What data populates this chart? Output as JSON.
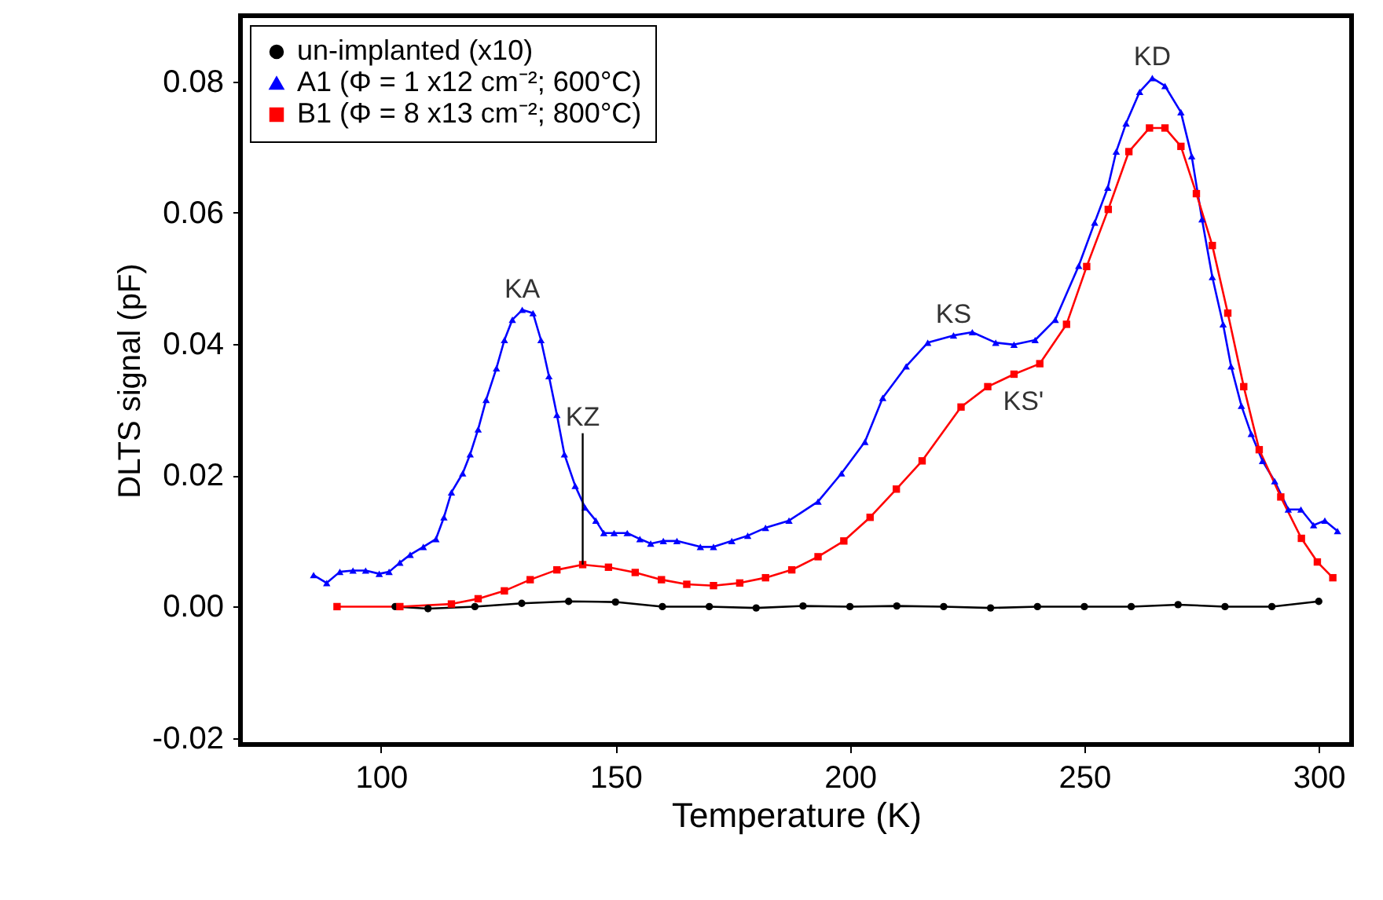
{
  "chart_data": {
    "type": "line",
    "xlabel": "Temperature (K)",
    "ylabel": "DLTS signal (pF)",
    "xlim": [
      70,
      307
    ],
    "ylim": [
      -0.021,
      0.09
    ],
    "xticks": [
      100,
      150,
      200,
      250,
      300
    ],
    "yticks": [
      {
        "value": -0.02,
        "label": "-0.02"
      },
      {
        "value": 0,
        "label": "0.00"
      },
      {
        "value": 0.02,
        "label": "0.02"
      },
      {
        "value": 0.04,
        "label": "0.04"
      },
      {
        "value": 0.06,
        "label": "0.06"
      },
      {
        "value": 0.08,
        "label": "0.08"
      }
    ],
    "grid": false,
    "legend": "top left",
    "line_style": "solid",
    "series": [
      {
        "name": "un-implanted (x10)",
        "color": "#000000",
        "marker": "circle",
        "x": [
          103,
          110,
          120,
          130,
          140,
          150,
          160,
          170,
          180,
          190,
          200,
          210,
          220,
          230,
          240,
          250,
          260,
          270,
          280,
          290,
          300
        ],
        "values": [
          0,
          -0.0003,
          0,
          0.0005,
          0.0008,
          0.0007,
          0,
          0,
          -0.0002,
          0.0001,
          0,
          0.0001,
          0,
          -0.0002,
          0,
          0,
          0,
          0.0003,
          0,
          0,
          0.0008
        ]
      },
      {
        "name": "A1 (Φ = 1 x12 cm⁻²; 600°C)",
        "color": "#0000ff",
        "marker": "triangle",
        "x": [
          85.6,
          88.4,
          91.2,
          94,
          96.7,
          99.6,
          101.7,
          104,
          106.2,
          109,
          111.7,
          113.4,
          115,
          117.4,
          119,
          120.7,
          122.4,
          124.6,
          126.3,
          128,
          130.1,
          132.4,
          134.1,
          135.8,
          137.5,
          139.1,
          141.4,
          143.5,
          145.8,
          147.5,
          149.7,
          152.5,
          155.2,
          157.5,
          160.2,
          163.1,
          168.1,
          170.9,
          174.8,
          178.2,
          182,
          187,
          193.2,
          198.2,
          203.2,
          207,
          212,
          216.6,
          222.1,
          226.1,
          231.1,
          235,
          239.5,
          243.8,
          248.8,
          252.2,
          255,
          256.8,
          258.9,
          261.8,
          264.5,
          267.2,
          270.6,
          272.9,
          275.1,
          277.3,
          279.6,
          281.3,
          283.5,
          285.6,
          288,
          290.6,
          293.5,
          296.2,
          298.9,
          301.3,
          304
        ],
        "values": [
          0.0048,
          0.0036,
          0.0053,
          0.0055,
          0.0055,
          0.005,
          0.0053,
          0.0067,
          0.0079,
          0.0091,
          0.0103,
          0.0136,
          0.0174,
          0.0203,
          0.0232,
          0.027,
          0.0315,
          0.0363,
          0.0406,
          0.0437,
          0.0452,
          0.0447,
          0.0406,
          0.0351,
          0.0292,
          0.0232,
          0.0184,
          0.0151,
          0.0131,
          0.0112,
          0.0112,
          0.0112,
          0.0103,
          0.0096,
          0.01,
          0.01,
          0.0091,
          0.0091,
          0.01,
          0.0108,
          0.012,
          0.0131,
          0.016,
          0.0203,
          0.0251,
          0.0318,
          0.0366,
          0.0402,
          0.0413,
          0.0418,
          0.0402,
          0.0399,
          0.0406,
          0.0437,
          0.0519,
          0.0585,
          0.0638,
          0.0693,
          0.0736,
          0.0784,
          0.0805,
          0.0793,
          0.0753,
          0.0686,
          0.059,
          0.0502,
          0.043,
          0.0366,
          0.0306,
          0.0263,
          0.0222,
          0.0191,
          0.0148,
          0.0148,
          0.0124,
          0.0131,
          0.0115
        ]
      },
      {
        "name": "B1 (Φ = 8 x13 cm⁻²; 800°C)",
        "color": "#ff0000",
        "marker": "square",
        "x": [
          90.6,
          104,
          115,
          120.7,
          126.3,
          131.8,
          137.5,
          143,
          148.5,
          154.2,
          159.8,
          165.2,
          170.9,
          176.5,
          182,
          187.6,
          193.2,
          198.7,
          204.3,
          209.9,
          215.4,
          223.7,
          229.4,
          235,
          240.5,
          246.2,
          250.5,
          255.1,
          259.5,
          263.9,
          267.2,
          270.6,
          273.9,
          277.3,
          280.6,
          284,
          287.3,
          291.9,
          296.3,
          299.7,
          303
        ],
        "values": [
          0,
          0,
          0.0004,
          0.0012,
          0.0024,
          0.0041,
          0.0056,
          0.0064,
          0.006,
          0.0052,
          0.0041,
          0.0034,
          0.0032,
          0.0036,
          0.0044,
          0.0056,
          0.0076,
          0.01,
          0.0136,
          0.0179,
          0.0222,
          0.0304,
          0.0335,
          0.0354,
          0.037,
          0.043,
          0.0518,
          0.0605,
          0.0693,
          0.0729,
          0.0729,
          0.0701,
          0.0629,
          0.055,
          0.0447,
          0.0335,
          0.0239,
          0.0167,
          0.0104,
          0.0068,
          0.0044
        ]
      }
    ],
    "annotations": [
      {
        "text": "KA",
        "x": 130.1,
        "y": 0.0452
      },
      {
        "text": "KZ",
        "x": 143,
        "y": 0.0064
      },
      {
        "text": "KS",
        "x": 222.1,
        "y": 0.0413
      },
      {
        "text": "KS'",
        "x": 235,
        "y": 0.0354
      },
      {
        "text": "KD",
        "x": 264.5,
        "y": 0.0805
      }
    ]
  }
}
